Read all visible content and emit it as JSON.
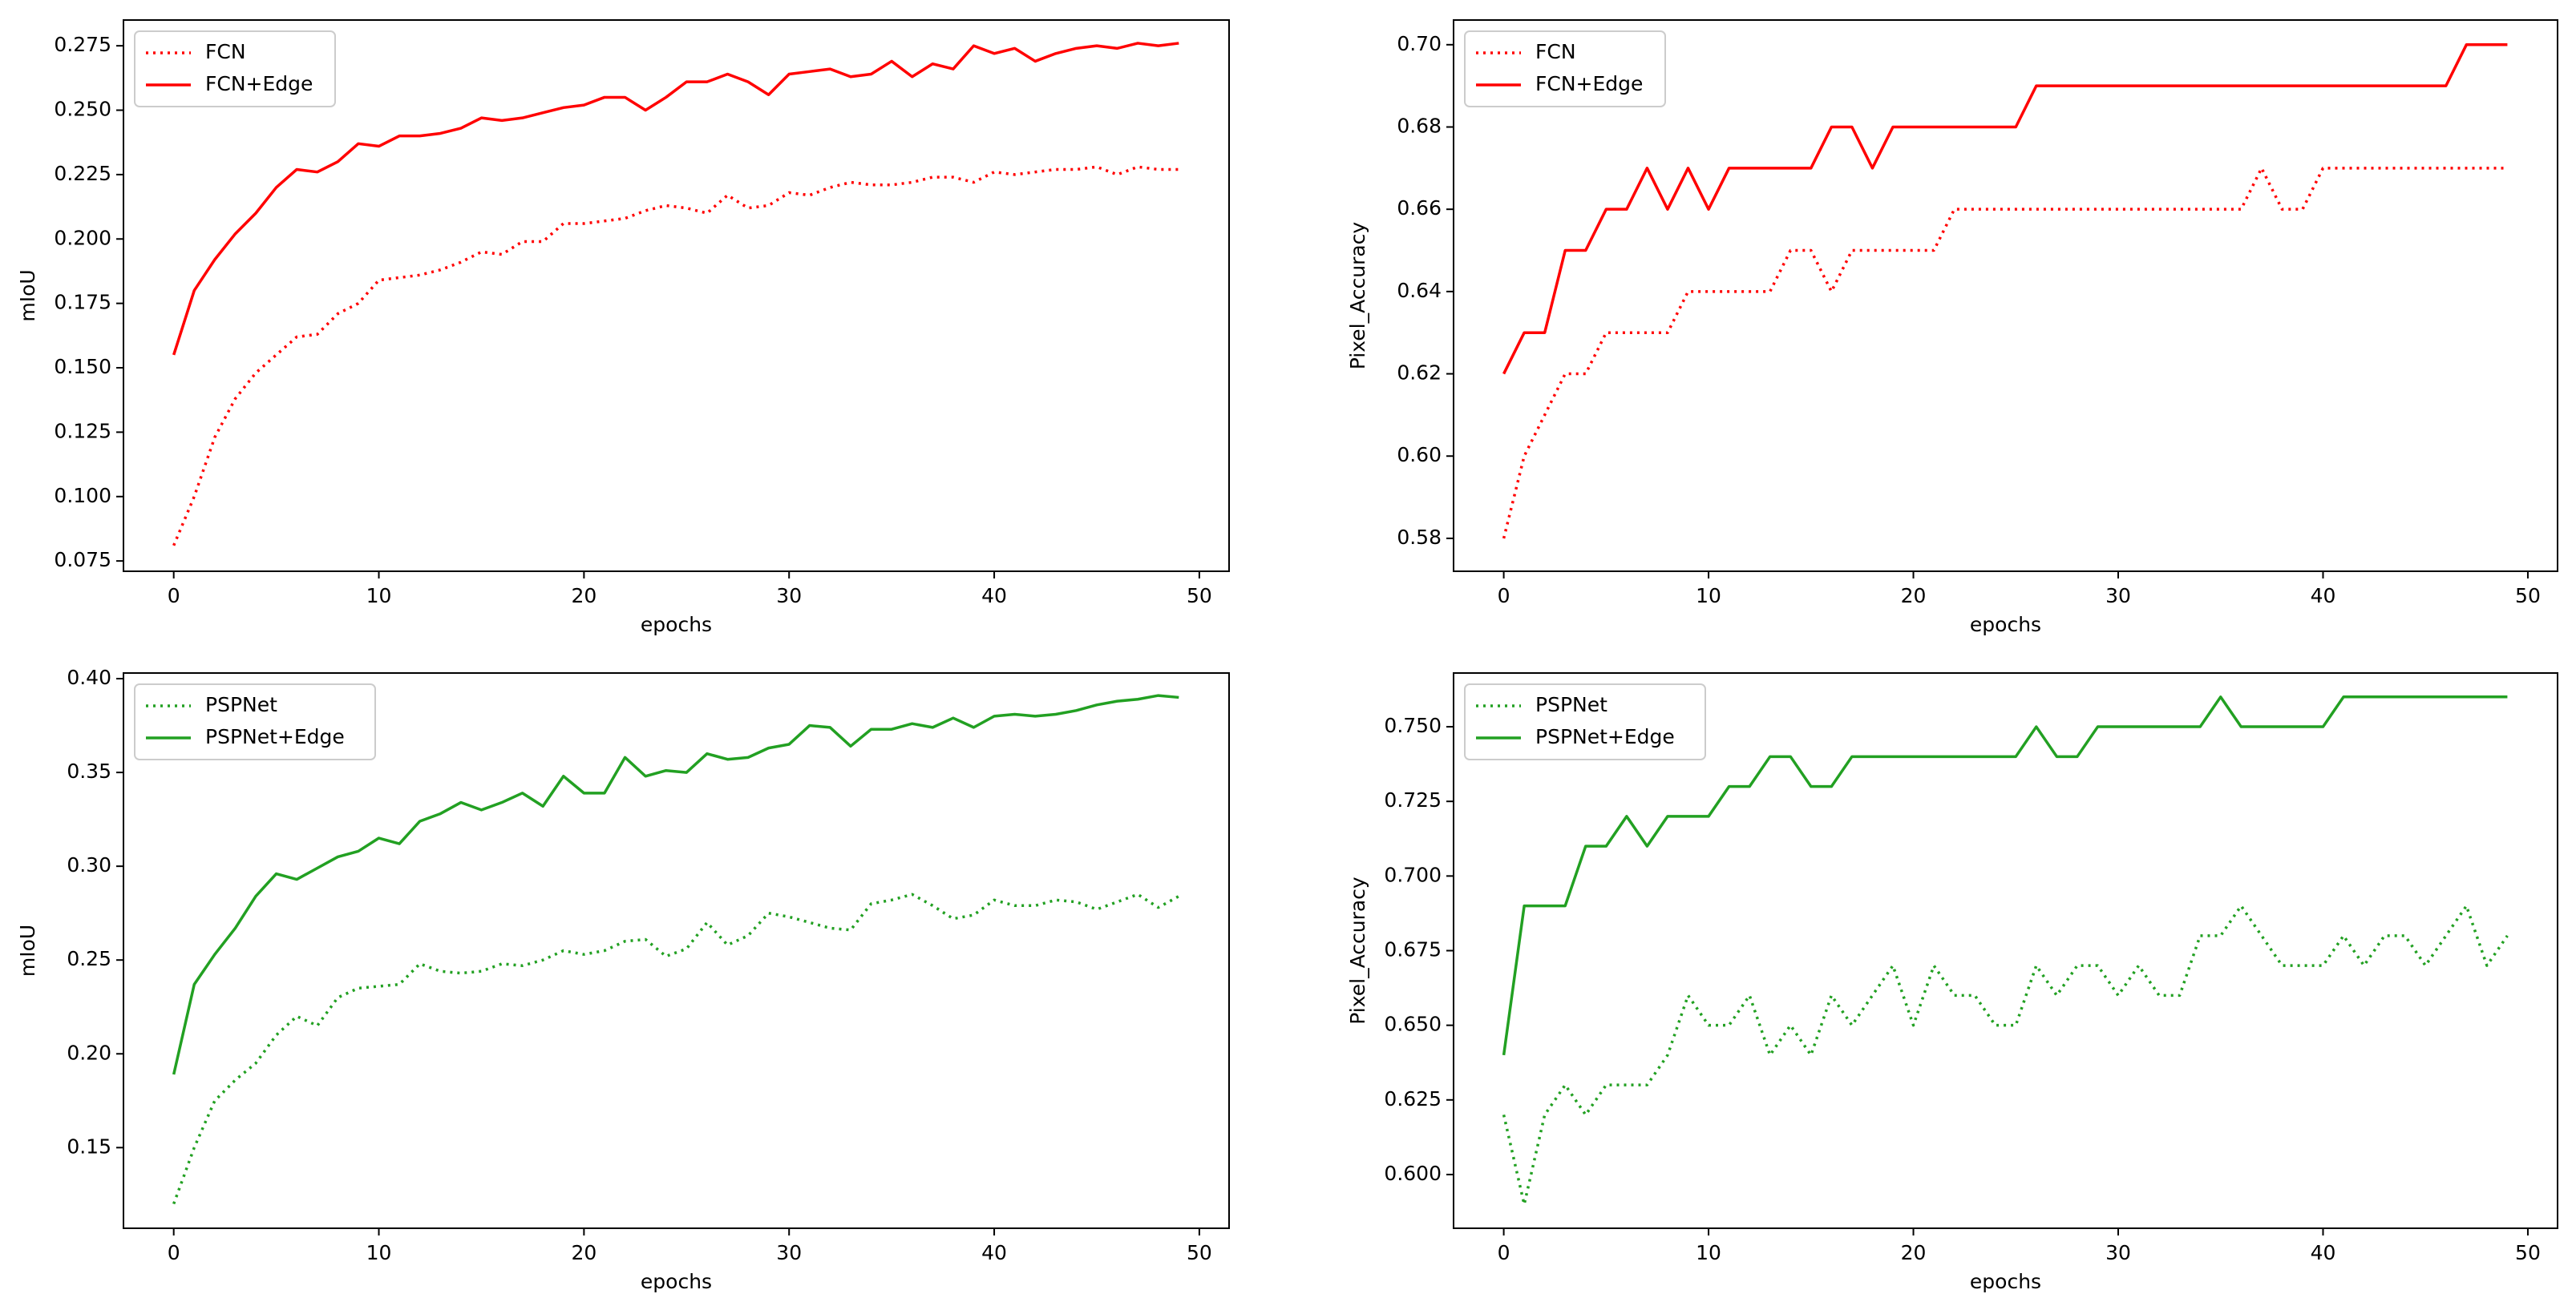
{
  "chart_data": [
    {
      "type": "line",
      "xlabel": "epochs",
      "ylabel": "mIoU",
      "legend": "upper left",
      "x": [
        0,
        1,
        2,
        3,
        4,
        5,
        6,
        7,
        8,
        9,
        10,
        11,
        12,
        13,
        14,
        15,
        16,
        17,
        18,
        19,
        20,
        21,
        22,
        23,
        24,
        25,
        26,
        27,
        28,
        29,
        30,
        31,
        32,
        33,
        34,
        35,
        36,
        37,
        38,
        39,
        40,
        41,
        42,
        43,
        44,
        45,
        46,
        47,
        48,
        49
      ],
      "xlim": [
        -2.45,
        51.45
      ],
      "xticks": [
        0,
        10,
        20,
        30,
        40,
        50
      ],
      "ylim": [
        0.071,
        0.285
      ],
      "yticks": [
        0.075,
        {
          "value": 0.1,
          "label": "0.100"
        },
        0.125,
        {
          "value": 0.15,
          "label": "0.150"
        },
        0.175,
        {
          "value": 0.2,
          "label": "0.200"
        },
        0.225,
        {
          "value": 0.25,
          "label": "0.250"
        },
        0.275
      ],
      "series": [
        {
          "name": "FCN",
          "color": "#ff0000",
          "style": "dotted",
          "values": [
            0.081,
            0.1,
            0.123,
            0.138,
            0.148,
            0.155,
            0.162,
            0.163,
            0.171,
            0.175,
            0.184,
            0.185,
            0.186,
            0.188,
            0.191,
            0.195,
            0.194,
            0.199,
            0.199,
            0.206,
            0.206,
            0.207,
            0.208,
            0.211,
            0.213,
            0.212,
            0.21,
            0.217,
            0.212,
            0.213,
            0.218,
            0.217,
            0.22,
            0.222,
            0.221,
            0.221,
            0.222,
            0.224,
            0.224,
            0.222,
            0.226,
            0.225,
            0.226,
            0.227,
            0.227,
            0.228,
            0.225,
            0.228,
            0.227,
            0.227
          ]
        },
        {
          "name": "FCN+Edge",
          "color": "#ff0000",
          "style": "solid",
          "values": [
            0.155,
            0.18,
            0.192,
            0.202,
            0.21,
            0.22,
            0.227,
            0.226,
            0.23,
            0.237,
            0.236,
            0.24,
            0.24,
            0.241,
            0.243,
            0.247,
            0.246,
            0.247,
            0.249,
            0.251,
            0.252,
            0.255,
            0.255,
            0.25,
            0.255,
            0.261,
            0.261,
            0.264,
            0.261,
            0.256,
            0.264,
            0.265,
            0.266,
            0.263,
            0.264,
            0.269,
            0.263,
            0.268,
            0.266,
            0.275,
            0.272,
            0.274,
            0.269,
            0.272,
            0.274,
            0.275,
            0.274,
            0.276,
            0.275,
            0.276
          ]
        }
      ]
    },
    {
      "type": "line",
      "xlabel": "epochs",
      "ylabel": "Pixel_Accuracy",
      "legend": "upper left",
      "x": [
        0,
        1,
        2,
        3,
        4,
        5,
        6,
        7,
        8,
        9,
        10,
        11,
        12,
        13,
        14,
        15,
        16,
        17,
        18,
        19,
        20,
        21,
        22,
        23,
        24,
        25,
        26,
        27,
        28,
        29,
        30,
        31,
        32,
        33,
        34,
        35,
        36,
        37,
        38,
        39,
        40,
        41,
        42,
        43,
        44,
        45,
        46,
        47,
        48,
        49
      ],
      "xlim": [
        -2.45,
        51.45
      ],
      "xticks": [
        0,
        10,
        20,
        30,
        40,
        50
      ],
      "ylim": [
        0.572,
        0.706
      ],
      "yticks": [
        0.58,
        {
          "value": 0.6,
          "label": "0.60"
        },
        0.62,
        0.64,
        0.66,
        0.68,
        {
          "value": 0.7,
          "label": "0.70"
        }
      ],
      "series": [
        {
          "name": "FCN",
          "color": "#ff0000",
          "style": "dotted",
          "values": [
            0.58,
            0.6,
            0.61,
            0.62,
            0.62,
            0.63,
            0.63,
            0.63,
            0.63,
            0.64,
            0.64,
            0.64,
            0.64,
            0.64,
            0.65,
            0.65,
            0.64,
            0.65,
            0.65,
            0.65,
            0.65,
            0.65,
            0.66,
            0.66,
            0.66,
            0.66,
            0.66,
            0.66,
            0.66,
            0.66,
            0.66,
            0.66,
            0.66,
            0.66,
            0.66,
            0.66,
            0.66,
            0.67,
            0.66,
            0.66,
            0.67,
            0.67,
            0.67,
            0.67,
            0.67,
            0.67,
            0.67,
            0.67,
            0.67,
            0.67
          ]
        },
        {
          "name": "FCN+Edge",
          "color": "#ff0000",
          "style": "solid",
          "values": [
            0.62,
            0.63,
            0.63,
            0.65,
            0.65,
            0.66,
            0.66,
            0.67,
            0.66,
            0.67,
            0.66,
            0.67,
            0.67,
            0.67,
            0.67,
            0.67,
            0.68,
            0.68,
            0.67,
            0.68,
            0.68,
            0.68,
            0.68,
            0.68,
            0.68,
            0.68,
            0.69,
            0.69,
            0.69,
            0.69,
            0.69,
            0.69,
            0.69,
            0.69,
            0.69,
            0.69,
            0.69,
            0.69,
            0.69,
            0.69,
            0.69,
            0.69,
            0.69,
            0.69,
            0.69,
            0.69,
            0.69,
            0.7,
            0.7,
            0.7
          ]
        }
      ]
    },
    {
      "type": "line",
      "xlabel": "epochs",
      "ylabel": "mIoU",
      "legend": "upper left",
      "x": [
        0,
        1,
        2,
        3,
        4,
        5,
        6,
        7,
        8,
        9,
        10,
        11,
        12,
        13,
        14,
        15,
        16,
        17,
        18,
        19,
        20,
        21,
        22,
        23,
        24,
        25,
        26,
        27,
        28,
        29,
        30,
        31,
        32,
        33,
        34,
        35,
        36,
        37,
        38,
        39,
        40,
        41,
        42,
        43,
        44,
        45,
        46,
        47,
        48,
        49
      ],
      "xlim": [
        -2.45,
        51.45
      ],
      "xticks": [
        0,
        10,
        20,
        30,
        40,
        50
      ],
      "ylim": [
        0.107,
        0.403
      ],
      "yticks": [
        0.15,
        {
          "value": 0.2,
          "label": "0.20"
        },
        0.25,
        {
          "value": 0.3,
          "label": "0.30"
        },
        0.35,
        {
          "value": 0.4,
          "label": "0.40"
        }
      ],
      "series": [
        {
          "name": "PSPNet",
          "color": "#22a022",
          "style": "dotted",
          "values": [
            0.12,
            0.15,
            0.175,
            0.186,
            0.195,
            0.21,
            0.22,
            0.215,
            0.23,
            0.235,
            0.236,
            0.237,
            0.248,
            0.244,
            0.243,
            0.244,
            0.248,
            0.247,
            0.25,
            0.255,
            0.253,
            0.255,
            0.26,
            0.261,
            0.252,
            0.256,
            0.27,
            0.258,
            0.263,
            0.275,
            0.273,
            0.27,
            0.267,
            0.266,
            0.28,
            0.282,
            0.285,
            0.279,
            0.272,
            0.274,
            0.282,
            0.279,
            0.279,
            0.282,
            0.281,
            0.277,
            0.281,
            0.285,
            0.278,
            0.284
          ]
        },
        {
          "name": "PSPNet+Edge",
          "color": "#22a022",
          "style": "solid",
          "values": [
            0.189,
            0.237,
            0.253,
            0.267,
            0.284,
            0.296,
            0.293,
            0.299,
            0.305,
            0.308,
            0.315,
            0.312,
            0.324,
            0.328,
            0.334,
            0.33,
            0.334,
            0.339,
            0.332,
            0.348,
            0.339,
            0.339,
            0.358,
            0.348,
            0.351,
            0.35,
            0.36,
            0.357,
            0.358,
            0.363,
            0.365,
            0.375,
            0.374,
            0.364,
            0.373,
            0.373,
            0.376,
            0.374,
            0.379,
            0.374,
            0.38,
            0.381,
            0.38,
            0.381,
            0.383,
            0.386,
            0.388,
            0.389,
            0.391,
            0.39
          ]
        }
      ]
    },
    {
      "type": "line",
      "xlabel": "epochs",
      "ylabel": "Pixel_Accuracy",
      "legend": "upper left",
      "x": [
        0,
        1,
        2,
        3,
        4,
        5,
        6,
        7,
        8,
        9,
        10,
        11,
        12,
        13,
        14,
        15,
        16,
        17,
        18,
        19,
        20,
        21,
        22,
        23,
        24,
        25,
        26,
        27,
        28,
        29,
        30,
        31,
        32,
        33,
        34,
        35,
        36,
        37,
        38,
        39,
        40,
        41,
        42,
        43,
        44,
        45,
        46,
        47,
        48,
        49
      ],
      "xlim": [
        -2.45,
        51.45
      ],
      "xticks": [
        0,
        10,
        20,
        30,
        40,
        50
      ],
      "ylim": [
        0.582,
        0.768
      ],
      "yticks": [
        {
          "value": 0.6,
          "label": "0.600"
        },
        0.625,
        {
          "value": 0.65,
          "label": "0.650"
        },
        0.675,
        {
          "value": 0.7,
          "label": "0.700"
        },
        0.725,
        {
          "value": 0.75,
          "label": "0.750"
        }
      ],
      "series": [
        {
          "name": "PSPNet",
          "color": "#22a022",
          "style": "dotted",
          "values": [
            0.62,
            0.59,
            0.62,
            0.63,
            0.62,
            0.63,
            0.63,
            0.63,
            0.64,
            0.66,
            0.65,
            0.65,
            0.66,
            0.64,
            0.65,
            0.64,
            0.66,
            0.65,
            0.66,
            0.67,
            0.65,
            0.67,
            0.66,
            0.66,
            0.65,
            0.65,
            0.67,
            0.66,
            0.67,
            0.67,
            0.66,
            0.67,
            0.66,
            0.66,
            0.68,
            0.68,
            0.69,
            0.68,
            0.67,
            0.67,
            0.67,
            0.68,
            0.67,
            0.68,
            0.68,
            0.67,
            0.68,
            0.69,
            0.67,
            0.68
          ]
        },
        {
          "name": "PSPNet+Edge",
          "color": "#22a022",
          "style": "solid",
          "values": [
            0.64,
            0.69,
            0.69,
            0.69,
            0.71,
            0.71,
            0.72,
            0.71,
            0.72,
            0.72,
            0.72,
            0.73,
            0.73,
            0.74,
            0.74,
            0.73,
            0.73,
            0.74,
            0.74,
            0.74,
            0.74,
            0.74,
            0.74,
            0.74,
            0.74,
            0.74,
            0.75,
            0.74,
            0.74,
            0.75,
            0.75,
            0.75,
            0.75,
            0.75,
            0.75,
            0.76,
            0.75,
            0.75,
            0.75,
            0.75,
            0.75,
            0.76,
            0.76,
            0.76,
            0.76,
            0.76,
            0.76,
            0.76,
            0.76,
            0.76
          ]
        }
      ]
    }
  ]
}
